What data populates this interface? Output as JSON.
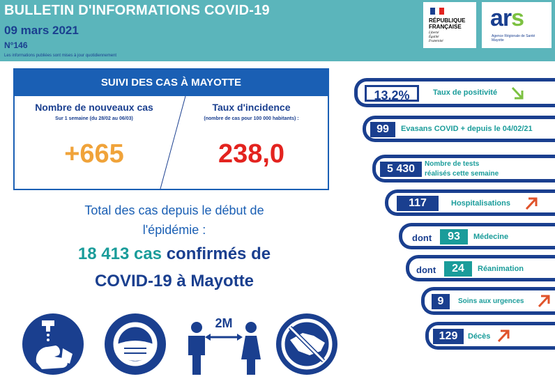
{
  "header": {
    "title": "BULLETIN D'INFORMATIONS COVID-19",
    "date": "09 mars 2021",
    "number": "N°146",
    "note": "Les informations publiées sont mises à jour quotidiennement"
  },
  "logos": {
    "rf_line1": "RÉPUBLIQUE",
    "rf_line2": "FRANÇAISE",
    "rf_motto1": "Liberté",
    "rf_motto2": "Égalité",
    "rf_motto3": "Fraternité",
    "ars_text": "ar",
    "ars_s": "s",
    "ars_sub1": "Agence Régionale de Santé",
    "ars_sub2": "Mayotte"
  },
  "cases": {
    "heading": "SUIVI DES CAS À MAYOTTE",
    "new_cases_title": "Nombre de nouveaux cas",
    "new_cases_sub": "Sur 1 semaine (du 28/02 au 06/03)",
    "new_cases_value": "+665",
    "incidence_title": "Taux d'incidence",
    "incidence_sub": "(nombre de cas pour 100 000 habitants) :",
    "incidence_value": "238,0"
  },
  "total": {
    "line1": "Total des cas depuis le début de",
    "line2": "l'épidémie :",
    "count": "18 413 cas",
    "confirmed": " confirmés de",
    "line4": "COVID-19 à Mayotte"
  },
  "icons": [
    "hand-washing-icon",
    "face-mask-icon",
    "distancing-2m-icon",
    "no-handshake-icon"
  ],
  "distance_label": "2M",
  "stats": {
    "positivity_value": "13,2%",
    "positivity_label": "Taux de positivité",
    "evasans_value": "99",
    "evasans_label": "Evasans COVID + depuis le 04/02/21",
    "tests_value": "5 430",
    "tests_label1": "Nombre de tests",
    "tests_label2": "réalisés cette semaine",
    "hosp_value": "117",
    "hosp_label": "Hospitalisations",
    "med_prefix": "dont",
    "med_value": "93",
    "med_label": "Médecine",
    "rea_prefix": "dont",
    "rea_value": "24",
    "rea_label": "Réanimation",
    "urg_value": "9",
    "urg_label": "Soins aux urgences",
    "deces_value": "129",
    "deces_label": "Décès"
  },
  "colors": {
    "teal": "#5bb5bb",
    "navy": "#1a3f8f",
    "orange": "#f0a33a",
    "red": "#e3231f",
    "green": "#7cc141"
  }
}
